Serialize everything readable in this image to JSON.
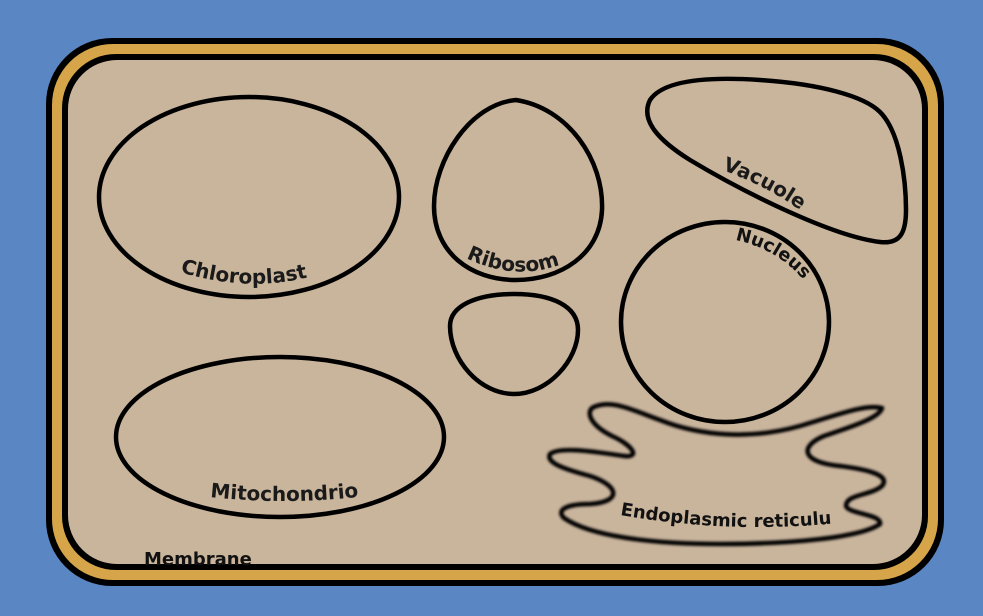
{
  "diagram": {
    "colors": {
      "background": "#5b86c4",
      "cell_wall": "#d6a54a",
      "cytoplasm": "#c9b49c",
      "outline": "#000000"
    },
    "labels": {
      "chloroplast": "Chloroplast",
      "ribosome": "Ribosome",
      "vacuole": "Vacuole",
      "nucleus": "Nucleus",
      "mitochondrion": "Mitochondrion",
      "endoplasmic_reticulum": "Endoplasmic reticulum",
      "membrane": "Membrane"
    }
  }
}
